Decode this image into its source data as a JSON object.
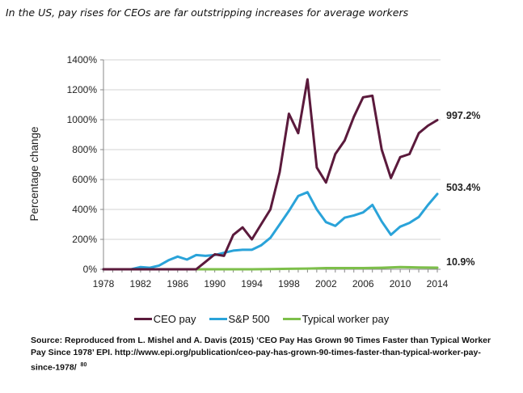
{
  "chart_data": {
    "type": "line",
    "title": "In the US, pay rises for CEOs are far outstripping increases for average workers",
    "ylabel": "Percentage change",
    "xlabel": "",
    "xlim": [
      1978,
      2014
    ],
    "ylim": [
      0,
      1400
    ],
    "x_ticks": [
      1978,
      1982,
      1986,
      1990,
      1994,
      1998,
      2002,
      2006,
      2010,
      2014
    ],
    "x_tick_labels": [
      "1978",
      "1982",
      "1986",
      "1990",
      "1994",
      "1998",
      "2002",
      "2006",
      "2010",
      "2014"
    ],
    "y_ticks": [
      0,
      200,
      400,
      600,
      800,
      1000,
      1200,
      1400
    ],
    "y_tick_labels": [
      "0%",
      "200%",
      "400%",
      "600%",
      "800%",
      "1000%",
      "1200%",
      "1400%"
    ],
    "grid": "horizontal",
    "legend_position": "bottom",
    "series": [
      {
        "name": "CEO pay",
        "color": "#5b1a3c",
        "end_label": "997.2%",
        "points": [
          [
            1978,
            0
          ],
          [
            1979,
            0
          ],
          [
            1980,
            0
          ],
          [
            1981,
            0
          ],
          [
            1982,
            0
          ],
          [
            1983,
            0
          ],
          [
            1984,
            0
          ],
          [
            1985,
            0
          ],
          [
            1986,
            0
          ],
          [
            1987,
            0
          ],
          [
            1988,
            0
          ],
          [
            1989,
            50
          ],
          [
            1990,
            100
          ],
          [
            1991,
            90
          ],
          [
            1992,
            230
          ],
          [
            1993,
            280
          ],
          [
            1994,
            200
          ],
          [
            1995,
            300
          ],
          [
            1996,
            400
          ],
          [
            1997,
            650
          ],
          [
            1998,
            1040
          ],
          [
            1999,
            910
          ],
          [
            2000,
            1270
          ],
          [
            2001,
            680
          ],
          [
            2002,
            580
          ],
          [
            2003,
            770
          ],
          [
            2004,
            860
          ],
          [
            2005,
            1020
          ],
          [
            2006,
            1150
          ],
          [
            2007,
            1160
          ],
          [
            2008,
            800
          ],
          [
            2009,
            610
          ],
          [
            2010,
            750
          ],
          [
            2011,
            770
          ],
          [
            2012,
            910
          ],
          [
            2013,
            960
          ],
          [
            2014,
            997.2
          ]
        ]
      },
      {
        "name": "S&P 500",
        "color": "#2aa3d9",
        "end_label": "503.4%",
        "points": [
          [
            1978,
            0
          ],
          [
            1979,
            0
          ],
          [
            1980,
            0
          ],
          [
            1981,
            0
          ],
          [
            1982,
            15
          ],
          [
            1983,
            10
          ],
          [
            1984,
            25
          ],
          [
            1985,
            60
          ],
          [
            1986,
            85
          ],
          [
            1987,
            65
          ],
          [
            1988,
            95
          ],
          [
            1989,
            90
          ],
          [
            1990,
            95
          ],
          [
            1991,
            110
          ],
          [
            1992,
            125
          ],
          [
            1993,
            130
          ],
          [
            1994,
            130
          ],
          [
            1995,
            160
          ],
          [
            1996,
            210
          ],
          [
            1997,
            300
          ],
          [
            1998,
            390
          ],
          [
            1999,
            490
          ],
          [
            2000,
            515
          ],
          [
            2001,
            400
          ],
          [
            2002,
            315
          ],
          [
            2003,
            290
          ],
          [
            2004,
            345
          ],
          [
            2005,
            360
          ],
          [
            2006,
            380
          ],
          [
            2007,
            430
          ],
          [
            2008,
            320
          ],
          [
            2009,
            230
          ],
          [
            2010,
            285
          ],
          [
            2011,
            310
          ],
          [
            2012,
            350
          ],
          [
            2013,
            430
          ],
          [
            2014,
            503.4
          ]
        ]
      },
      {
        "name": "Typical worker pay",
        "color": "#7dbf4a",
        "end_label": "10.9%",
        "points": [
          [
            1978,
            0
          ],
          [
            1980,
            0
          ],
          [
            1982,
            0
          ],
          [
            1984,
            0
          ],
          [
            1986,
            0
          ],
          [
            1988,
            0
          ],
          [
            1990,
            0
          ],
          [
            1992,
            0
          ],
          [
            1994,
            0
          ],
          [
            1996,
            1
          ],
          [
            1998,
            3
          ],
          [
            2000,
            5
          ],
          [
            2002,
            8
          ],
          [
            2004,
            8
          ],
          [
            2006,
            8
          ],
          [
            2008,
            10
          ],
          [
            2010,
            15
          ],
          [
            2012,
            12
          ],
          [
            2014,
            10.9
          ]
        ]
      }
    ]
  },
  "source": "Source: Reproduced from L. Mishel and A. Davis (2015) ‘CEO Pay Has Grown 90 Times Faster than Typical Worker Pay Since 1978’ EPI. http://www.epi.org/publication/ceo-pay-has-grown-90-times-faster-than-typical-worker-pay-since-1978/",
  "source_badge": "80"
}
